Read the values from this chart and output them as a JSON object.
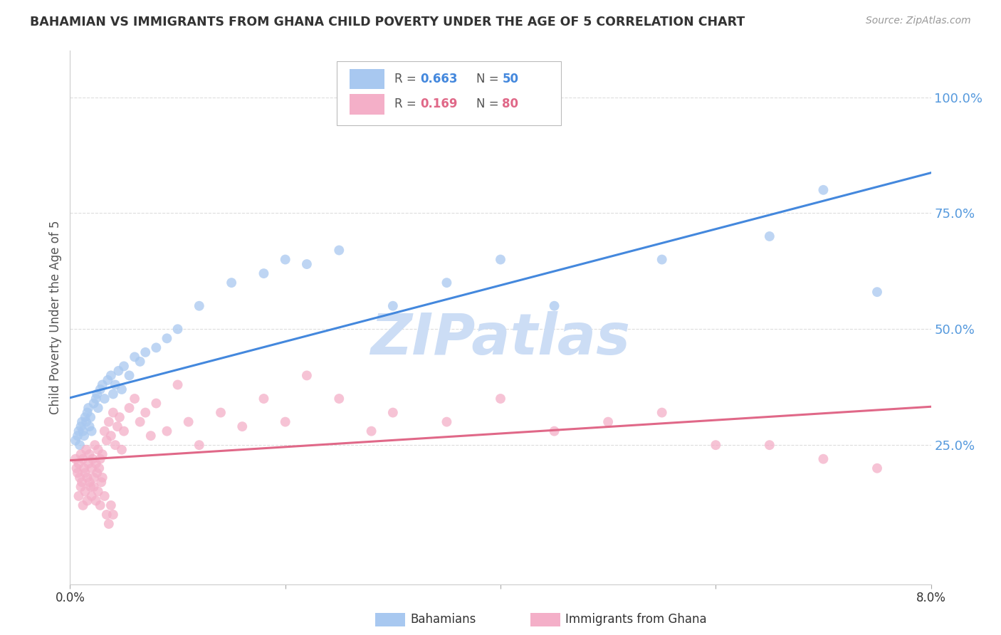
{
  "title": "BAHAMIAN VS IMMIGRANTS FROM GHANA CHILD POVERTY UNDER THE AGE OF 5 CORRELATION CHART",
  "source": "Source: ZipAtlas.com",
  "ylabel": "Child Poverty Under the Age of 5",
  "xlim": [
    0.0,
    8.0
  ],
  "ylim": [
    -5.0,
    110.0
  ],
  "ytick_vals": [
    25.0,
    50.0,
    75.0,
    100.0
  ],
  "blue_R": 0.663,
  "blue_N": 50,
  "pink_R": 0.169,
  "pink_N": 80,
  "blue_color": "#a8c8f0",
  "blue_line_color": "#4488dd",
  "pink_color": "#f4afc8",
  "pink_line_color": "#e06888",
  "ytick_color": "#5599dd",
  "background_color": "#ffffff",
  "watermark_text": "ZIPatlas",
  "watermark_color": "#ccddf5",
  "grid_color": "#dddddd",
  "title_color": "#333333",
  "source_color": "#999999",
  "blue_x": [
    0.05,
    0.07,
    0.08,
    0.09,
    0.1,
    0.11,
    0.12,
    0.13,
    0.14,
    0.15,
    0.16,
    0.17,
    0.18,
    0.19,
    0.2,
    0.22,
    0.24,
    0.25,
    0.26,
    0.28,
    0.3,
    0.32,
    0.35,
    0.38,
    0.4,
    0.42,
    0.45,
    0.48,
    0.5,
    0.55,
    0.6,
    0.65,
    0.7,
    0.8,
    0.9,
    1.0,
    1.2,
    1.5,
    1.8,
    2.0,
    2.2,
    2.5,
    3.0,
    3.5,
    4.0,
    4.5,
    5.5,
    6.5,
    7.0,
    7.5
  ],
  "blue_y": [
    26,
    27,
    28,
    25,
    29,
    30,
    28,
    27,
    31,
    30,
    32,
    33,
    29,
    31,
    28,
    34,
    35,
    36,
    33,
    37,
    38,
    35,
    39,
    40,
    36,
    38,
    41,
    37,
    42,
    40,
    44,
    43,
    45,
    46,
    48,
    50,
    55,
    60,
    62,
    65,
    64,
    67,
    55,
    60,
    65,
    55,
    65,
    70,
    80,
    58
  ],
  "pink_x": [
    0.05,
    0.06,
    0.07,
    0.08,
    0.09,
    0.1,
    0.11,
    0.12,
    0.13,
    0.14,
    0.15,
    0.16,
    0.17,
    0.18,
    0.19,
    0.2,
    0.21,
    0.22,
    0.23,
    0.24,
    0.25,
    0.26,
    0.27,
    0.28,
    0.29,
    0.3,
    0.32,
    0.34,
    0.36,
    0.38,
    0.4,
    0.42,
    0.44,
    0.46,
    0.48,
    0.5,
    0.55,
    0.6,
    0.65,
    0.7,
    0.75,
    0.8,
    0.9,
    1.0,
    1.1,
    1.2,
    1.4,
    1.6,
    1.8,
    2.0,
    2.2,
    2.5,
    2.8,
    3.0,
    3.5,
    4.0,
    4.5,
    5.0,
    5.5,
    6.0,
    6.5,
    7.0,
    7.5,
    0.08,
    0.1,
    0.12,
    0.14,
    0.16,
    0.18,
    0.2,
    0.22,
    0.24,
    0.26,
    0.28,
    0.3,
    0.32,
    0.34,
    0.36,
    0.38,
    0.4
  ],
  "pink_y": [
    22,
    20,
    19,
    21,
    18,
    23,
    17,
    22,
    20,
    19,
    24,
    18,
    21,
    23,
    16,
    20,
    22,
    18,
    25,
    21,
    19,
    24,
    20,
    22,
    17,
    23,
    28,
    26,
    30,
    27,
    32,
    25,
    29,
    31,
    24,
    28,
    33,
    35,
    30,
    32,
    27,
    34,
    28,
    38,
    30,
    25,
    32,
    29,
    35,
    30,
    40,
    35,
    28,
    32,
    30,
    35,
    28,
    30,
    32,
    25,
    25,
    22,
    20,
    14,
    16,
    12,
    15,
    13,
    17,
    14,
    16,
    13,
    15,
    12,
    18,
    14,
    10,
    8,
    12,
    10
  ]
}
